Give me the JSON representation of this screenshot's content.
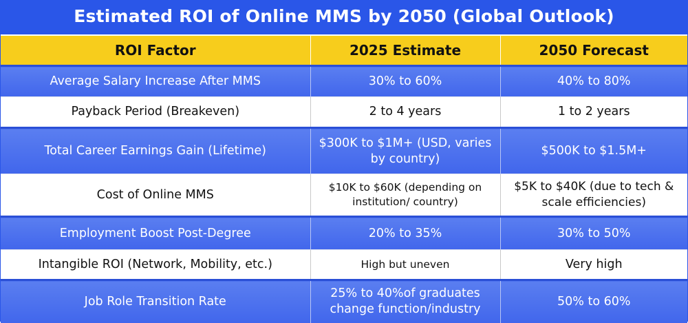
{
  "title": "Estimated ROI of Online MMS by 2050 (Global Outlook)",
  "headers": [
    "ROI Factor",
    "2025 Estimate",
    "2050 Forecast"
  ],
  "rows": [
    {
      "factor": "Average Salary Increase After MMS",
      "est2025": "30% to 60%",
      "fc2050": "40% to 80%"
    },
    {
      "factor": "Payback Period (Breakeven)",
      "est2025": "2 to 4 years",
      "fc2050": "1 to 2 years"
    },
    {
      "factor": "Total Career Earnings Gain (Lifetime)",
      "est2025": "$300K to $1M+ (USD, varies by country)",
      "fc2050": "$500K to $1.5M+"
    },
    {
      "factor": "Cost of Online MMS",
      "est2025": "$10K to $60K (depending on institution/ country)",
      "fc2050": "$5K to $40K (due to tech & scale efficiencies)"
    },
    {
      "factor": "Employment Boost Post-Degree",
      "est2025": "20% to 35%",
      "fc2050": "30% to 50%"
    },
    {
      "factor": "Intangible ROI (Network, Mobility, etc.)",
      "est2025": "High but uneven",
      "fc2050": "Very high"
    },
    {
      "factor": "Job Role Transition Rate",
      "est2025": "25% to 40%of graduates change function/industry",
      "fc2050": "50% to 60%"
    }
  ]
}
